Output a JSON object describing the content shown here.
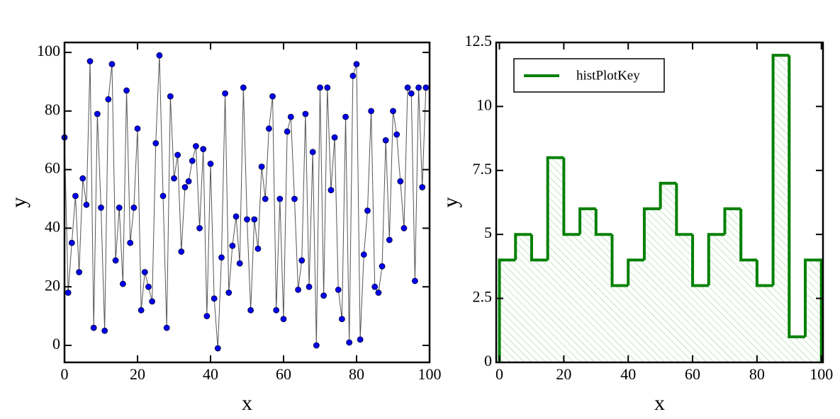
{
  "chart_data": [
    {
      "type": "line",
      "markers": true,
      "line_color": "#555555",
      "marker_color": "#0000ee",
      "x_label": "x",
      "y_label": "y",
      "x": [
        0,
        1,
        2,
        3,
        4,
        5,
        6,
        7,
        8,
        9,
        10,
        11,
        12,
        13,
        14,
        15,
        16,
        17,
        18,
        19,
        20,
        21,
        22,
        23,
        24,
        25,
        26,
        27,
        28,
        29,
        30,
        31,
        32,
        33,
        34,
        35,
        36,
        37,
        38,
        39,
        40,
        41,
        42,
        43,
        44,
        45,
        46,
        47,
        48,
        49,
        50,
        51,
        52,
        53,
        54,
        55,
        56,
        57,
        58,
        59,
        60,
        61,
        62,
        63,
        64,
        65,
        66,
        67,
        68,
        69,
        70,
        71,
        72,
        73,
        74,
        75,
        76,
        77,
        78,
        79,
        80,
        81,
        82,
        83,
        84,
        85,
        86,
        87,
        88,
        89,
        90,
        91,
        92,
        93,
        94,
        95,
        96,
        97,
        98,
        99
      ],
      "values": [
        71,
        18,
        35,
        51,
        25,
        57,
        48,
        97,
        6,
        79,
        47,
        5,
        84,
        96,
        29,
        47,
        21,
        87,
        35,
        47,
        74,
        12,
        25,
        20,
        15,
        69,
        99,
        51,
        6,
        85,
        57,
        65,
        32,
        54,
        56,
        63,
        68,
        40,
        67,
        10,
        62,
        16,
        -1,
        30,
        86,
        18,
        34,
        44,
        28,
        88,
        43,
        12,
        43,
        33,
        61,
        50,
        74,
        85,
        12,
        50,
        9,
        73,
        78,
        50,
        19,
        29,
        79,
        20,
        66,
        0,
        88,
        17,
        88,
        53,
        71,
        19,
        9,
        78,
        1,
        92,
        96,
        2,
        31,
        46,
        80,
        20,
        18,
        27,
        70,
        36,
        80,
        72,
        56,
        40,
        88,
        86,
        22,
        88,
        54,
        88
      ],
      "xlim": [
        0,
        100
      ],
      "ylim": [
        -5.8,
        103.4
      ],
      "xticks": [
        0,
        20,
        40,
        60,
        80,
        100
      ],
      "yticks": [
        0,
        20,
        40,
        60,
        80,
        100
      ]
    },
    {
      "type": "histogram",
      "x_label": "x",
      "y_label": "y",
      "legend": "upper left",
      "bins": [
        0,
        5,
        10,
        15,
        20,
        25,
        30,
        35,
        40,
        45,
        50,
        55,
        60,
        65,
        70,
        75,
        80,
        85,
        90,
        95,
        100
      ],
      "series": [
        {
          "name": "histPlotKey",
          "color": "#008000",
          "values": [
            4,
            5,
            4,
            8,
            5,
            6,
            5,
            3,
            4,
            6,
            7,
            5,
            3,
            5,
            6,
            4,
            3,
            12,
            1,
            4
          ]
        }
      ],
      "xlim": [
        -1,
        100.5
      ],
      "ylim": [
        0,
        12.5
      ],
      "xticks": [
        0,
        20,
        40,
        60,
        80,
        100
      ],
      "yticks": [
        0,
        2.5,
        5,
        7.5,
        10,
        12.5
      ]
    }
  ]
}
